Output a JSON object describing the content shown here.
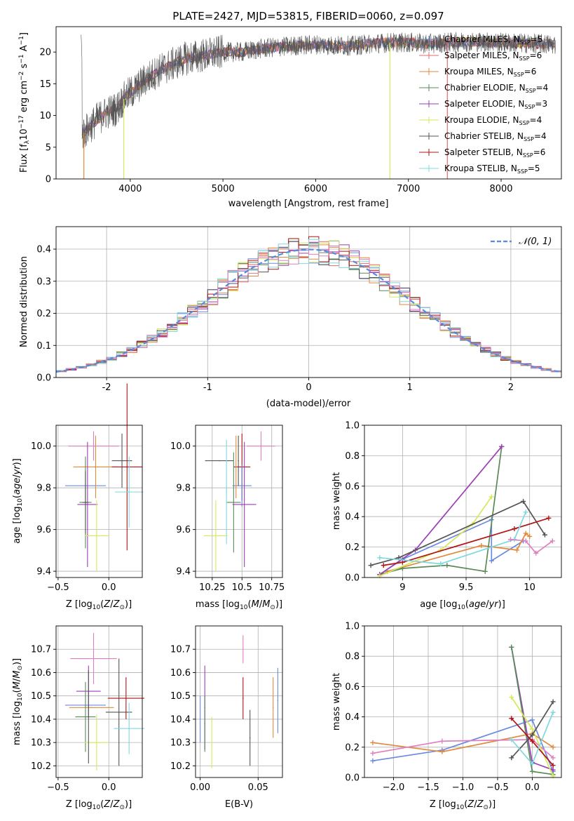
{
  "colors": {
    "Chabrier MILES": "#6b8be0",
    "Salpeter MILES": "#e06b6b",
    "Kroupa MILES": "#e08a3c",
    "Chabrier ELODIE": "#5a8a5a",
    "Salpeter ELODIE": "#9b3fb5",
    "Kroupa ELODIE": "#d8e85a",
    "Chabrier STELIB": "#555555",
    "Salpeter STELIB": "#b01515",
    "Kroupa STELIB": "#7fd8e0",
    "pink": "#e07fbf",
    "normal": "#5b8bd8"
  },
  "chart_data": [
    {
      "type": "line",
      "title": "PLATE=2427, MJD=53815, FIBERID=0060, z=0.097",
      "xlabel": "wavelength [Angstrom, rest frame]",
      "ylabel": "Flux [f",
      "ylabel_sub": "λ",
      "ylabel_rest": "10",
      "ylabel_exp": "−17",
      "ylabel_units": " erg cm",
      "ylabel_exp2": "−2",
      "ylabel_s": " s",
      "ylabel_exp3": "−1",
      "ylabel_a": " A",
      "ylabel_exp4": "−1",
      "ylabel_end": "]",
      "xlim": [
        3200,
        8650
      ],
      "ylim": [
        0,
        24
      ],
      "xticks": [
        4000,
        5000,
        6000,
        7000,
        8000
      ],
      "yticks": [
        0,
        5,
        10,
        15,
        20
      ],
      "grid": false,
      "legend_position": "upper right",
      "series": [
        {
          "name": "Chabrier MILES, N",
          "sub": "SSP",
          "suffix": "=5"
        },
        {
          "name": "Salpeter MILES, N",
          "sub": "SSP",
          "suffix": "=6"
        },
        {
          "name": "Kroupa MILES, N",
          "sub": "SSP",
          "suffix": "=6"
        },
        {
          "name": "Chabrier ELODIE, N",
          "sub": "SSP",
          "suffix": "=4"
        },
        {
          "name": "Salpeter ELODIE, N",
          "sub": "SSP",
          "suffix": "=3"
        },
        {
          "name": "Kroupa ELODIE, N",
          "sub": "SSP",
          "suffix": "=4"
        },
        {
          "name": "Chabrier STELIB, N",
          "sub": "SSP",
          "suffix": "=4"
        },
        {
          "name": "Salpeter STELIB, N",
          "sub": "SSP",
          "suffix": "=6"
        },
        {
          "name": "Kroupa STELIB, N",
          "sub": "SSP",
          "suffix": "=5"
        }
      ],
      "envelope": [
        [
          3480,
          7
        ],
        [
          3550,
          8
        ],
        [
          3650,
          9.5
        ],
        [
          3750,
          10.5
        ],
        [
          3850,
          11
        ],
        [
          3950,
          13
        ],
        [
          4050,
          14
        ],
        [
          4150,
          15.5
        ],
        [
          4300,
          17
        ],
        [
          4450,
          18
        ],
        [
          4600,
          19
        ],
        [
          4800,
          19.5
        ],
        [
          5000,
          20
        ],
        [
          5200,
          20
        ],
        [
          5400,
          20.5
        ],
        [
          5600,
          20.8
        ],
        [
          5800,
          21
        ],
        [
          6000,
          21.2
        ],
        [
          6200,
          21
        ],
        [
          6400,
          21
        ],
        [
          6600,
          21.3
        ],
        [
          6800,
          21.5
        ],
        [
          7000,
          21.5
        ],
        [
          7200,
          21.3
        ],
        [
          7400,
          21.5
        ],
        [
          7600,
          21.6
        ],
        [
          7800,
          21.6
        ],
        [
          8000,
          21.5
        ],
        [
          8200,
          21.4
        ],
        [
          8400,
          21.3
        ],
        [
          8550,
          21.2
        ]
      ],
      "dips": [
        [
          3500,
          0
        ],
        [
          3930,
          0
        ],
        [
          6800,
          0
        ],
        [
          7420,
          0
        ]
      ]
    },
    {
      "type": "bar",
      "xlabel": "(data-model)/error",
      "ylabel": "Normed distribution",
      "xlim": [
        -2.5,
        2.5
      ],
      "ylim": [
        0,
        0.47
      ],
      "xticks": [
        -2,
        -1,
        0,
        1,
        2
      ],
      "yticks": [
        0.0,
        0.1,
        0.2,
        0.3,
        0.4
      ],
      "grid": true,
      "legend_position": "upper right",
      "legend_label": "N(0,1)",
      "bin_width": 0.1,
      "bin_start": -2.5
    },
    {
      "type": "scatter",
      "xlabel": "Z [log10(Z/Z⊙)]",
      "ylabel": "age  [log10(age/yr)]",
      "xlim": [
        -0.52,
        0.33
      ],
      "ylim": [
        9.37,
        10.1
      ],
      "xticks": [
        -0.5,
        0.0
      ],
      "xtick_labels": [
        "−0.5",
        "0.0"
      ],
      "yticks": [
        9.4,
        9.6,
        9.8,
        10.0
      ],
      "grid": true,
      "points": [
        {
          "x": -0.23,
          "y": 9.81,
          "xerr": 0.2,
          "yerr": 0.1,
          "c": "Chabrier MILES"
        },
        {
          "x": -0.13,
          "y": 9.9,
          "xerr": 0.22,
          "yerr": 0.15,
          "c": "Kroupa MILES"
        },
        {
          "x": -0.15,
          "y": 10.0,
          "xerr": 0.25,
          "yerr": 0.07,
          "c": "pink"
        },
        {
          "x": -0.21,
          "y": 9.72,
          "xerr": 0.1,
          "yerr": 0.3,
          "c": "Salpeter ELODIE"
        },
        {
          "x": -0.23,
          "y": 9.73,
          "xerr": 0.06,
          "yerr": 0.22,
          "c": "Chabrier ELODIE"
        },
        {
          "x": -0.12,
          "y": 9.57,
          "xerr": 0.12,
          "yerr": 0.17,
          "c": "Kroupa ELODIE"
        },
        {
          "x": -0.23,
          "y": 9.73,
          "xerr": 0.03,
          "yerr": 0.15,
          "c": "Chabrier STELIB"
        },
        {
          "x": 0.13,
          "y": 9.93,
          "xerr": 0.1,
          "yerr": 0.13,
          "c": "Chabrier STELIB"
        },
        {
          "x": 0.18,
          "y": 9.9,
          "xerr": 0.15,
          "yerr": 0.4,
          "c": "Salpeter STELIB"
        },
        {
          "x": 0.2,
          "y": 9.78,
          "xerr": 0.14,
          "yerr": 0.17,
          "c": "Kroupa STELIB"
        }
      ]
    },
    {
      "type": "scatter",
      "xlabel": "mass [log10(M/M⊙)]",
      "xlim": [
        10.11,
        10.84
      ],
      "ylim": [
        9.37,
        10.1
      ],
      "xticks": [
        10.25,
        10.5,
        10.75
      ],
      "yticks": [
        9.4,
        9.6,
        9.8,
        10.0
      ],
      "grid": true,
      "points": [
        {
          "x": 10.31,
          "y": 9.93,
          "xerr": 0.12,
          "yerr": 0.0,
          "c": "Chabrier STELIB"
        },
        {
          "x": 10.5,
          "y": 9.9,
          "xerr": 0.07,
          "yerr": 0.16,
          "c": "Salpeter STELIB"
        },
        {
          "x": 10.5,
          "y": 9.81,
          "xerr": 0.08,
          "yerr": 0.1,
          "c": "Chabrier MILES"
        },
        {
          "x": 10.43,
          "y": 9.73,
          "xerr": 0.06,
          "yerr": 0.24,
          "c": "Chabrier ELODIE"
        },
        {
          "x": 10.52,
          "y": 9.72,
          "xerr": 0.1,
          "yerr": 0.3,
          "c": "Salpeter ELODIE"
        },
        {
          "x": 10.37,
          "y": 9.78,
          "xerr": 0.0,
          "yerr": 0.25,
          "c": "Kroupa STELIB"
        },
        {
          "x": 10.28,
          "y": 9.57,
          "xerr": 0.1,
          "yerr": 0.17,
          "c": "Kroupa ELODIE"
        },
        {
          "x": 10.66,
          "y": 10.0,
          "xerr": 0.12,
          "yerr": 0.07,
          "c": "pink"
        },
        {
          "x": 10.45,
          "y": 9.9,
          "xerr": 0.0,
          "yerr": 0.15,
          "c": "Kroupa MILES"
        },
        {
          "x": 10.47,
          "y": 9.93,
          "xerr": 0.0,
          "yerr": 0.12,
          "c": "Chabrier STELIB"
        }
      ]
    },
    {
      "type": "line",
      "xlabel": "age  [log10(age/yr)]",
      "ylabel": "mass weight",
      "xlim": [
        8.7,
        10.25
      ],
      "ylim": [
        0,
        1.0
      ],
      "xticks": [
        9.0,
        9.5,
        10.0
      ],
      "yticks": [
        0.0,
        0.2,
        0.4,
        0.6,
        0.8,
        1.0
      ],
      "grid": true,
      "series": [
        {
          "c": "Chabrier MILES",
          "x": [
            8.82,
            9.0,
            9.7,
            9.7,
            9.95
          ],
          "y": [
            0.02,
            0.12,
            0.38,
            0.11,
            0.24
          ]
        },
        {
          "c": "Kroupa MILES",
          "x": [
            8.88,
            9.62,
            9.9,
            9.97,
            10.0
          ],
          "y": [
            0.04,
            0.21,
            0.18,
            0.29,
            0.27
          ]
        },
        {
          "c": "Chabrier ELODIE",
          "x": [
            8.82,
            9.0,
            9.35,
            9.65,
            9.78
          ],
          "y": [
            0.02,
            0.06,
            0.08,
            0.04,
            0.86
          ]
        },
        {
          "c": "Salpeter ELODIE",
          "x": [
            8.82,
            9.1,
            9.78
          ],
          "y": [
            0.02,
            0.18,
            0.86
          ]
        },
        {
          "c": "Kroupa ELODIE",
          "x": [
            8.82,
            9.3,
            9.55,
            9.7
          ],
          "y": [
            0.01,
            0.18,
            0.35,
            0.53
          ]
        },
        {
          "c": "Chabrier STELIB",
          "x": [
            8.75,
            8.97,
            9.95,
            10.12
          ],
          "y": [
            0.08,
            0.13,
            0.5,
            0.28
          ]
        },
        {
          "c": "Salpeter STELIB",
          "x": [
            8.85,
            9.0,
            9.88,
            10.15
          ],
          "y": [
            0.08,
            0.1,
            0.32,
            0.39
          ]
        },
        {
          "c": "Kroupa STELIB",
          "x": [
            8.82,
            9.3,
            9.88,
            9.97
          ],
          "y": [
            0.13,
            0.09,
            0.25,
            0.43
          ]
        },
        {
          "c": "pink",
          "x": [
            9.85,
            9.97,
            10.05,
            10.18
          ],
          "y": [
            0.25,
            0.24,
            0.16,
            0.24
          ]
        }
      ]
    },
    {
      "type": "scatter",
      "xlabel": "Z [log10(Z/Z⊙)]",
      "ylabel": "mass [log10(M/M⊙)]",
      "xlim": [
        -0.52,
        0.33
      ],
      "ylim": [
        10.15,
        10.8
      ],
      "xticks": [
        -0.5,
        0.0
      ],
      "xtick_labels": [
        "−0.5",
        "0.0"
      ],
      "yticks": [
        10.2,
        10.3,
        10.4,
        10.5,
        10.6,
        10.7
      ],
      "grid": true,
      "points": [
        {
          "x": -0.23,
          "y": 10.46,
          "xerr": 0.2,
          "yerr": 0.0,
          "c": "Chabrier MILES"
        },
        {
          "x": -0.17,
          "y": 10.45,
          "xerr": 0.22,
          "yerr": 0.0,
          "c": "Kroupa MILES"
        },
        {
          "x": -0.15,
          "y": 10.66,
          "xerr": 0.23,
          "yerr": 0.11,
          "c": "pink"
        },
        {
          "x": -0.2,
          "y": 10.52,
          "xerr": 0.12,
          "yerr": 0.11,
          "c": "Salpeter ELODIE"
        },
        {
          "x": -0.23,
          "y": 10.41,
          "xerr": 0.1,
          "yerr": 0.15,
          "c": "Chabrier ELODIE"
        },
        {
          "x": -0.12,
          "y": 10.3,
          "xerr": 0.12,
          "yerr": 0.12,
          "c": "Kroupa ELODIE"
        },
        {
          "x": -0.2,
          "y": 10.41,
          "xerr": 0.0,
          "yerr": 0.2,
          "c": "Chabrier STELIB"
        },
        {
          "x": 0.1,
          "y": 10.43,
          "xerr": 0.13,
          "yerr": 0.23,
          "c": "Chabrier STELIB"
        },
        {
          "x": 0.17,
          "y": 10.49,
          "xerr": 0.18,
          "yerr": 0.09,
          "c": "Salpeter STELIB"
        },
        {
          "x": 0.2,
          "y": 10.36,
          "xerr": 0.15,
          "yerr": 0.11,
          "c": "Kroupa STELIB"
        }
      ]
    },
    {
      "type": "scatter",
      "xlabel": "E(B-V)",
      "xlim": [
        -0.004,
        0.071
      ],
      "ylim": [
        10.15,
        10.8
      ],
      "xticks": [
        0.0,
        0.05
      ],
      "xtick_labels": [
        "0.00",
        "0.05"
      ],
      "yticks": [
        10.2,
        10.3,
        10.4,
        10.5,
        10.6,
        10.7
      ],
      "grid": true,
      "points": [
        {
          "x": 0.0,
          "y": 10.4,
          "xerr": 0,
          "yerr": 0.1,
          "c": "Chabrier MILES"
        },
        {
          "x": 0.004,
          "y": 10.45,
          "xerr": 0,
          "yerr": 0.18,
          "c": "Salpeter ELODIE"
        },
        {
          "x": 0.004,
          "y": 10.38,
          "xerr": 0,
          "yerr": 0.12,
          "c": "Chabrier ELODIE"
        },
        {
          "x": 0.01,
          "y": 10.3,
          "xerr": 0,
          "yerr": 0.11,
          "c": "Kroupa ELODIE"
        },
        {
          "x": 0.037,
          "y": 10.7,
          "xerr": 0,
          "yerr": 0.06,
          "c": "pink"
        },
        {
          "x": 0.037,
          "y": 10.49,
          "xerr": 0,
          "yerr": 0.09,
          "c": "Salpeter STELIB"
        },
        {
          "x": 0.043,
          "y": 10.32,
          "xerr": 0,
          "yerr": 0.12,
          "c": "Chabrier STELIB"
        },
        {
          "x": 0.063,
          "y": 10.45,
          "xerr": 0,
          "yerr": 0.13,
          "c": "Kroupa MILES"
        },
        {
          "x": 0.067,
          "y": 10.48,
          "xerr": 0,
          "yerr": 0.14,
          "c": "Chabrier MILES"
        }
      ]
    },
    {
      "type": "line",
      "xlabel": "Z [log10(Z/Z⊙)]",
      "ylabel": "mass weight",
      "xlim": [
        -2.42,
        0.42
      ],
      "ylim": [
        0,
        1.0
      ],
      "xticks": [
        -2.0,
        -1.5,
        -1.0,
        -0.5,
        0.0
      ],
      "xtick_labels": [
        "−2.0",
        "−1.5",
        "−1.0",
        "−0.5",
        "0.0"
      ],
      "yticks": [
        0.0,
        0.2,
        0.4,
        0.6,
        0.8,
        1.0
      ],
      "grid": true,
      "series": [
        {
          "c": "Chabrier MILES",
          "x": [
            -2.3,
            -1.3,
            0.0,
            0.3
          ],
          "y": [
            0.11,
            0.18,
            0.38,
            0.04
          ]
        },
        {
          "c": "Kroupa MILES",
          "x": [
            -2.3,
            -1.3,
            0.0,
            0.3
          ],
          "y": [
            0.23,
            0.17,
            0.29,
            0.2
          ]
        },
        {
          "c": "pink",
          "x": [
            -2.3,
            -1.3,
            0.0,
            0.3
          ],
          "y": [
            0.16,
            0.24,
            0.25,
            0.13
          ]
        },
        {
          "c": "Salpeter ELODIE",
          "x": [
            -0.3,
            0.0,
            0.3
          ],
          "y": [
            0.86,
            0.1,
            0.05
          ]
        },
        {
          "c": "Chabrier ELODIE",
          "x": [
            -0.3,
            0.0,
            0.3
          ],
          "y": [
            0.86,
            0.04,
            0.02
          ]
        },
        {
          "c": "Kroupa ELODIE",
          "x": [
            -0.3,
            0.0,
            0.3
          ],
          "y": [
            0.53,
            0.32,
            0.01
          ]
        },
        {
          "c": "Chabrier STELIB",
          "x": [
            -0.3,
            0.0,
            0.3
          ],
          "y": [
            0.13,
            0.28,
            0.5
          ]
        },
        {
          "c": "Salpeter STELIB",
          "x": [
            -0.3,
            0.0,
            0.3
          ],
          "y": [
            0.39,
            0.24,
            0.08
          ]
        },
        {
          "c": "Kroupa STELIB",
          "x": [
            -0.3,
            0.0,
            0.3
          ],
          "y": [
            0.25,
            0.09,
            0.43
          ]
        }
      ]
    }
  ]
}
